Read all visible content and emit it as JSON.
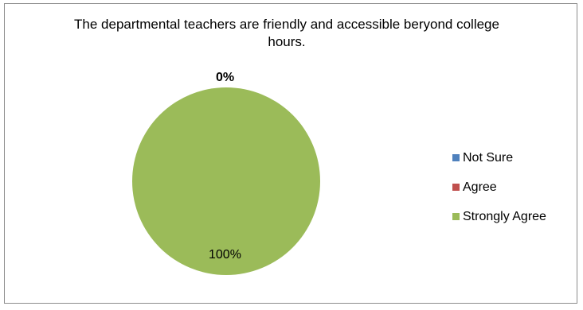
{
  "chart_data": {
    "type": "pie",
    "title": "The departmental teachers are friendly and accessible beryond college hours.",
    "categories": [
      "Not Sure",
      "Agree",
      "Strongly Agree"
    ],
    "values": [
      0,
      0,
      100
    ],
    "data_labels": [
      "0%",
      "",
      "100%"
    ],
    "colors": [
      "#4f81bd",
      "#c0504d",
      "#9bbb59"
    ],
    "legend": "right"
  }
}
